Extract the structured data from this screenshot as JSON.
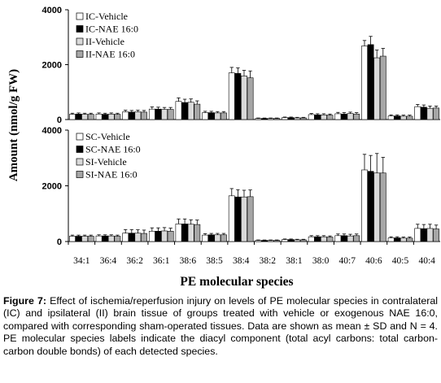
{
  "chart_data": [
    {
      "type": "bar",
      "categories": [
        "34:1",
        "36:4",
        "36:2",
        "36:1",
        "38:6",
        "38:5",
        "38:4",
        "38:2",
        "38:1",
        "38:0",
        "40:7",
        "40:6",
        "40:5",
        "40:4"
      ],
      "ylim": [
        0,
        4000
      ],
      "yticks": [
        0,
        2000,
        4000
      ],
      "error_bars": "mean ± SD",
      "legend_position": "top-left",
      "series": [
        {
          "name": "IC-Vehicle",
          "color": "#ffffff",
          "values": [
            190,
            200,
            280,
            380,
            660,
            250,
            1700,
            40,
            70,
            180,
            210,
            2680,
            130,
            470
          ],
          "errors": [
            40,
            40,
            60,
            80,
            130,
            50,
            200,
            15,
            20,
            40,
            50,
            200,
            40,
            80
          ]
        },
        {
          "name": "IC-NAE 16:0",
          "color": "#000000",
          "values": [
            200,
            190,
            270,
            380,
            620,
            250,
            1680,
            40,
            70,
            170,
            200,
            2730,
            130,
            450
          ],
          "errors": [
            40,
            40,
            60,
            70,
            120,
            50,
            200,
            15,
            20,
            40,
            50,
            300,
            40,
            80
          ]
        },
        {
          "name": "II-Vehicle",
          "color": "#d9d9d9",
          "values": [
            190,
            200,
            280,
            370,
            630,
            240,
            1590,
            40,
            60,
            170,
            220,
            2250,
            120,
            410
          ],
          "errors": [
            40,
            40,
            60,
            70,
            120,
            50,
            200,
            15,
            20,
            40,
            50,
            280,
            40,
            80
          ]
        },
        {
          "name": "II-NAE 16:0",
          "color": "#a6a6a6",
          "values": [
            190,
            190,
            270,
            370,
            560,
            240,
            1520,
            40,
            60,
            160,
            200,
            2310,
            120,
            420
          ],
          "errors": [
            40,
            40,
            60,
            70,
            120,
            50,
            250,
            15,
            20,
            40,
            50,
            280,
            40,
            70
          ]
        }
      ]
    },
    {
      "type": "bar",
      "categories": [
        "34:1",
        "36:4",
        "36:2",
        "36:1",
        "38:6",
        "38:5",
        "38:4",
        "38:2",
        "38:1",
        "38:0",
        "40:7",
        "40:6",
        "40:5",
        "40:4"
      ],
      "ylim": [
        0,
        4000
      ],
      "yticks": [
        0,
        2000,
        4000
      ],
      "xlabel": "PE molecular species",
      "error_bars": "mean ± SD",
      "legend_position": "top-left",
      "series": [
        {
          "name": "SC-Vehicle",
          "color": "#ffffff",
          "values": [
            190,
            200,
            300,
            370,
            630,
            230,
            1640,
            40,
            70,
            170,
            210,
            2570,
            130,
            470
          ],
          "errors": [
            40,
            40,
            130,
            120,
            180,
            50,
            260,
            15,
            20,
            40,
            60,
            560,
            40,
            150
          ]
        },
        {
          "name": "SC-NAE 16:0",
          "color": "#000000",
          "values": [
            190,
            200,
            300,
            370,
            630,
            240,
            1600,
            40,
            70,
            170,
            210,
            2520,
            130,
            460
          ],
          "errors": [
            40,
            40,
            130,
            120,
            180,
            50,
            260,
            15,
            20,
            40,
            60,
            570,
            40,
            150
          ]
        },
        {
          "name": "SI-Vehicle",
          "color": "#d9d9d9",
          "values": [
            190,
            200,
            300,
            380,
            620,
            240,
            1600,
            40,
            60,
            170,
            200,
            2460,
            120,
            470
          ],
          "errors": [
            40,
            40,
            120,
            120,
            160,
            50,
            240,
            15,
            20,
            40,
            60,
            700,
            40,
            150
          ]
        },
        {
          "name": "SI-NAE 16:0",
          "color": "#a6a6a6",
          "values": [
            190,
            190,
            290,
            370,
            610,
            240,
            1610,
            40,
            60,
            160,
            210,
            2460,
            120,
            450
          ],
          "errors": [
            40,
            40,
            120,
            110,
            160,
            50,
            240,
            15,
            20,
            40,
            60,
            560,
            40,
            140
          ]
        }
      ]
    }
  ],
  "y_axis_label": "Amount (nmol/g FW)",
  "caption": {
    "label": "Figure 7:",
    "text": " Effect of ischemia/reperfusion injury on levels of PE molecular species in contralateral (IC) and ipsilateral (II) brain tissue of groups treated with vehicle or exogenous NAE 16:0, compared with corresponding sham-operated tissues. Data are shown as mean ± SD and N = 4. PE molecular species labels indicate the diacyl component (total acyl carbons: total carbon-carbon double bonds) of each detected species."
  }
}
